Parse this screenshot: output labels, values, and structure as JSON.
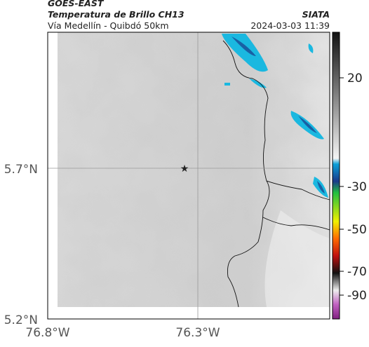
{
  "header": {
    "agency": "GOES-EAST",
    "title": "Temperatura de Brillo CH13",
    "subtitle": "Vía Medellín - Quibdó 50km",
    "source": "SIATA",
    "timestamp": "2024-03-03 11:39"
  },
  "axes": {
    "y_labels": [
      "5.7°N",
      "5.2°N"
    ],
    "x_labels": [
      "76.8°W",
      "76.3°W"
    ]
  },
  "colorbar": {
    "ticks": [
      20,
      -30,
      -50,
      -70,
      -90
    ]
  }
}
